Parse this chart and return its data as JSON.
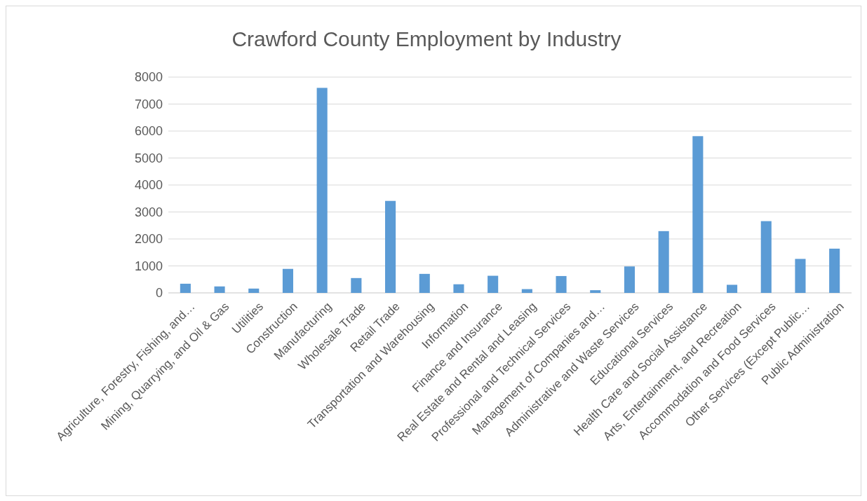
{
  "chart_data": {
    "type": "bar",
    "title": "Crawford County Employment by Industry",
    "categories": [
      "Agriculture, Forestry, Fishing, and…",
      "Mining, Quarrying, and Oil & Gas",
      "Utilities",
      "Construction",
      "Manufacturing",
      "Wholesale Trade",
      "Retail Trade",
      "Transportation and Warehousing",
      "Information",
      "Finance and Insurance",
      "Real Estate and Rental and Leasing",
      "Professional and Technical Services",
      "Management of Companies and…",
      "Administrative and Waste Services",
      "Educational Services",
      "Health Care and Social Assistance",
      "Arts, Entertainment, and Recreation",
      "Accommodation and Food Services",
      "Other Services (Except Public…",
      "Public Administration"
    ],
    "values": [
      340,
      240,
      160,
      890,
      7600,
      550,
      3410,
      705,
      320,
      635,
      140,
      625,
      100,
      980,
      2290,
      5810,
      300,
      2660,
      1260,
      1640
    ],
    "color": "#5b9bd5",
    "ylim": [
      0,
      8000
    ],
    "yticks": [
      0,
      1000,
      2000,
      3000,
      4000,
      5000,
      6000,
      7000,
      8000
    ],
    "grid": "y"
  }
}
